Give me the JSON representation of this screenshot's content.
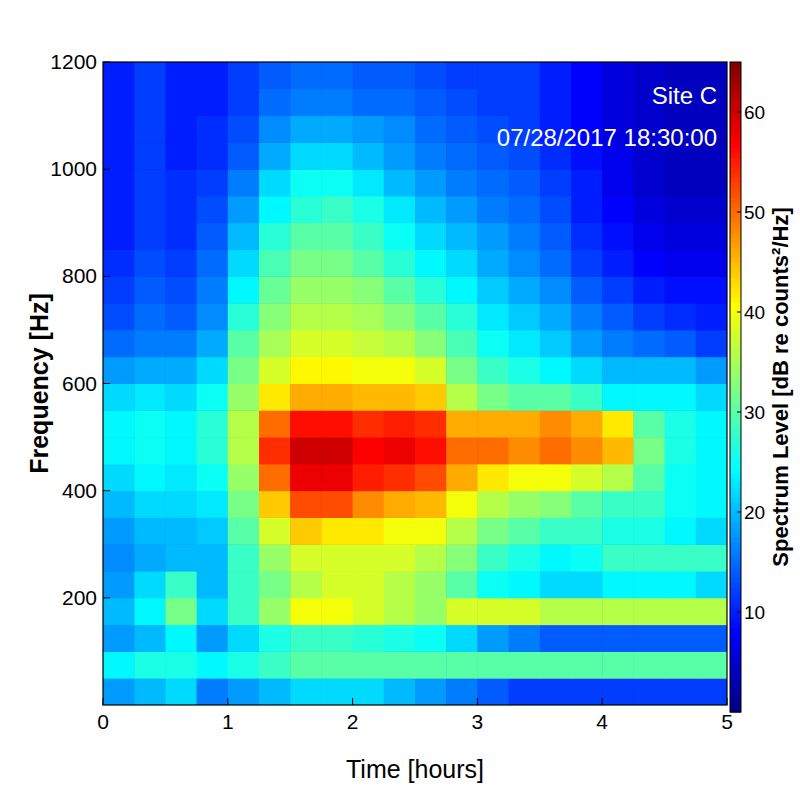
{
  "chart_data": {
    "type": "heatmap",
    "annotations": [
      "Site C",
      "07/28/2017 18:30:00"
    ],
    "x_label": "Time [hours]",
    "y_label": "Frequency [Hz]",
    "z_label": "Spectrum Level [dB re counts²/Hz]",
    "xlim": [
      0,
      5
    ],
    "xticks": [
      0,
      1,
      2,
      3,
      4,
      5
    ],
    "ylim": [
      0,
      1200
    ],
    "yticks": [
      200,
      400,
      600,
      800,
      1000,
      1200
    ],
    "zlim": [
      0,
      65
    ],
    "zticks": [
      10,
      20,
      30,
      40,
      50,
      60
    ],
    "x": [
      0.125,
      0.375,
      0.625,
      0.875,
      1.125,
      1.375,
      1.625,
      1.875,
      2.125,
      2.375,
      2.625,
      2.875,
      3.125,
      3.375,
      3.625,
      3.875,
      4.125,
      4.375,
      4.625,
      4.875
    ],
    "y": [
      25,
      75,
      125,
      175,
      225,
      275,
      325,
      375,
      425,
      475,
      525,
      575,
      625,
      675,
      725,
      775,
      825,
      875,
      925,
      975,
      1025,
      1075,
      1125,
      1175
    ],
    "values": [
      [
        18,
        20,
        22,
        16,
        18,
        20,
        22,
        22,
        22,
        20,
        18,
        16,
        14,
        12,
        12,
        12,
        12,
        12,
        12,
        12
      ],
      [
        24,
        26,
        26,
        24,
        26,
        28,
        30,
        30,
        30,
        30,
        30,
        30,
        30,
        30,
        30,
        30,
        30,
        30,
        30,
        30
      ],
      [
        18,
        20,
        24,
        18,
        22,
        26,
        28,
        28,
        27,
        26,
        25,
        22,
        18,
        16,
        14,
        14,
        14,
        14,
        14,
        14
      ],
      [
        20,
        24,
        32,
        22,
        28,
        34,
        40,
        40,
        38,
        36,
        34,
        38,
        38,
        38,
        36,
        36,
        36,
        36,
        36,
        36
      ],
      [
        18,
        22,
        28,
        20,
        28,
        32,
        36,
        38,
        38,
        36,
        34,
        30,
        25,
        24,
        22,
        22,
        24,
        24,
        24,
        22
      ],
      [
        17,
        19,
        20,
        20,
        28,
        34,
        38,
        38,
        38,
        38,
        36,
        33,
        28,
        26,
        24,
        25,
        28,
        28,
        28,
        28
      ],
      [
        18,
        20,
        20,
        21,
        30,
        38,
        44,
        42,
        42,
        40,
        40,
        36,
        32,
        30,
        28,
        28,
        26,
        26,
        24,
        22
      ],
      [
        20,
        22,
        22,
        23,
        32,
        44,
        52,
        52,
        48,
        46,
        45,
        40,
        36,
        34,
        33,
        30,
        28,
        28,
        25,
        24
      ],
      [
        22,
        24,
        23,
        25,
        34,
        50,
        58,
        58,
        55,
        54,
        52,
        46,
        42,
        40,
        40,
        38,
        36,
        30,
        25,
        24
      ],
      [
        24,
        25,
        24,
        27,
        36,
        54,
        60,
        60,
        57,
        58,
        56,
        50,
        50,
        48,
        50,
        48,
        45,
        32,
        26,
        24
      ],
      [
        24,
        25,
        24,
        27,
        36,
        50,
        56,
        56,
        54,
        55,
        54,
        46,
        46,
        46,
        48,
        46,
        42,
        30,
        26,
        24
      ],
      [
        22,
        23,
        22,
        25,
        34,
        42,
        46,
        46,
        45,
        45,
        44,
        36,
        32,
        30,
        30,
        28,
        24,
        24,
        24,
        22
      ],
      [
        18,
        19,
        19,
        22,
        32,
        38,
        41,
        41,
        40,
        40,
        38,
        32,
        28,
        26,
        24,
        22,
        20,
        20,
        20,
        18
      ],
      [
        15,
        16,
        16,
        19,
        30,
        35,
        38,
        38,
        37,
        36,
        33,
        29,
        25,
        23,
        21,
        18,
        16,
        15,
        14,
        12
      ],
      [
        13,
        15,
        14,
        17,
        27,
        33,
        36,
        36,
        35,
        33,
        30,
        27,
        23,
        21,
        19,
        16,
        14,
        12,
        11,
        10
      ],
      [
        12,
        14,
        13,
        16,
        24,
        31,
        34,
        34,
        33,
        30,
        27,
        24,
        21,
        19,
        17,
        14,
        12,
        10,
        9,
        9
      ],
      [
        11,
        13,
        12,
        15,
        22,
        29,
        32,
        32,
        30,
        27,
        24,
        22,
        19,
        17,
        15,
        12,
        10,
        8,
        7,
        7
      ],
      [
        10,
        12,
        11,
        14,
        20,
        27,
        30,
        30,
        28,
        25,
        22,
        20,
        18,
        16,
        14,
        11,
        9,
        7,
        6,
        6
      ],
      [
        10,
        12,
        11,
        13,
        18,
        24,
        27,
        28,
        26,
        23,
        20,
        18,
        16,
        15,
        13,
        10,
        8,
        6,
        5,
        5
      ],
      [
        10,
        12,
        11,
        12,
        16,
        22,
        25,
        25,
        23,
        20,
        18,
        16,
        15,
        14,
        12,
        10,
        7,
        5,
        4,
        4
      ],
      [
        10,
        12,
        10,
        11,
        14,
        19,
        22,
        22,
        20,
        18,
        16,
        15,
        14,
        13,
        11,
        9,
        7,
        5,
        4,
        4
      ],
      [
        10,
        12,
        10,
        11,
        13,
        17,
        19,
        19,
        18,
        17,
        15,
        14,
        13,
        12,
        10,
        8,
        6,
        5,
        4,
        4
      ],
      [
        10,
        12,
        10,
        10,
        12,
        15,
        16,
        16,
        15,
        15,
        14,
        13,
        12,
        12,
        10,
        8,
        6,
        5,
        4,
        4
      ],
      [
        10,
        12,
        10,
        10,
        12,
        14,
        15,
        15,
        14,
        14,
        13,
        12,
        12,
        12,
        10,
        8,
        6,
        5,
        4,
        4
      ]
    ]
  }
}
